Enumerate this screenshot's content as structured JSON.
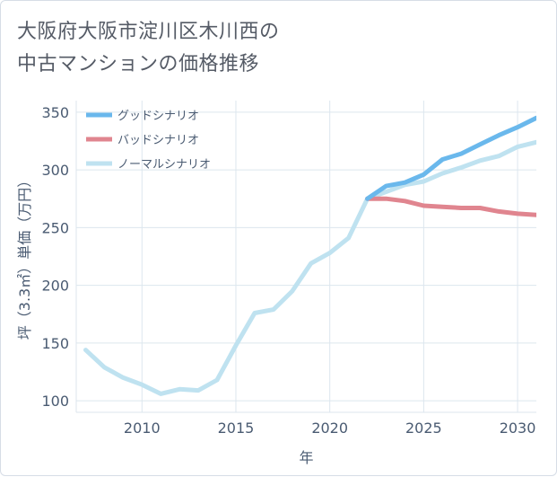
{
  "title_lines": [
    "大阪府大阪市淀川区木川西の",
    "中古マンションの価格推移"
  ],
  "chart_data": {
    "type": "line",
    "xlabel": "年",
    "ylabel": "坪（3.3㎡）単価（万円）",
    "xlim": [
      2006.5,
      2031
    ],
    "ylim": [
      90,
      360
    ],
    "x_ticks": [
      "2010",
      "2015",
      "2020",
      "2025",
      "2030"
    ],
    "y_ticks": [
      "100",
      "150",
      "200",
      "250",
      "300",
      "350"
    ],
    "grid": true,
    "legend_position": "top-left",
    "series": [
      {
        "name": "ノーマルシナリオ",
        "color": "#bfe2f0",
        "x": [
          2007,
          2008,
          2009,
          2010,
          2011,
          2012,
          2013,
          2014,
          2015,
          2016,
          2017,
          2018,
          2019,
          2020,
          2021,
          2022,
          2023,
          2024,
          2025,
          2026,
          2027,
          2028,
          2029,
          2030,
          2031
        ],
        "values": [
          144,
          129,
          120,
          114,
          106,
          110,
          109,
          118,
          148,
          176,
          179,
          195,
          219,
          228,
          241,
          275,
          281,
          287,
          290,
          297,
          302,
          308,
          312,
          320,
          324
        ]
      },
      {
        "name": "バッドシナリオ",
        "color": "#e0858f",
        "x": [
          2022,
          2023,
          2024,
          2025,
          2026,
          2027,
          2028,
          2029,
          2030,
          2031
        ],
        "values": [
          275,
          275,
          273,
          269,
          268,
          267,
          267,
          264,
          262,
          261
        ]
      },
      {
        "name": "グッドシナリオ",
        "color": "#6ab8ec",
        "x": [
          2022,
          2023,
          2024,
          2025,
          2026,
          2027,
          2028,
          2029,
          2030,
          2031
        ],
        "values": [
          275,
          286,
          289,
          296,
          309,
          314,
          322,
          330,
          337,
          345
        ]
      }
    ],
    "legend_order": [
      "グッドシナリオ",
      "バッドシナリオ",
      "ノーマルシナリオ"
    ]
  }
}
